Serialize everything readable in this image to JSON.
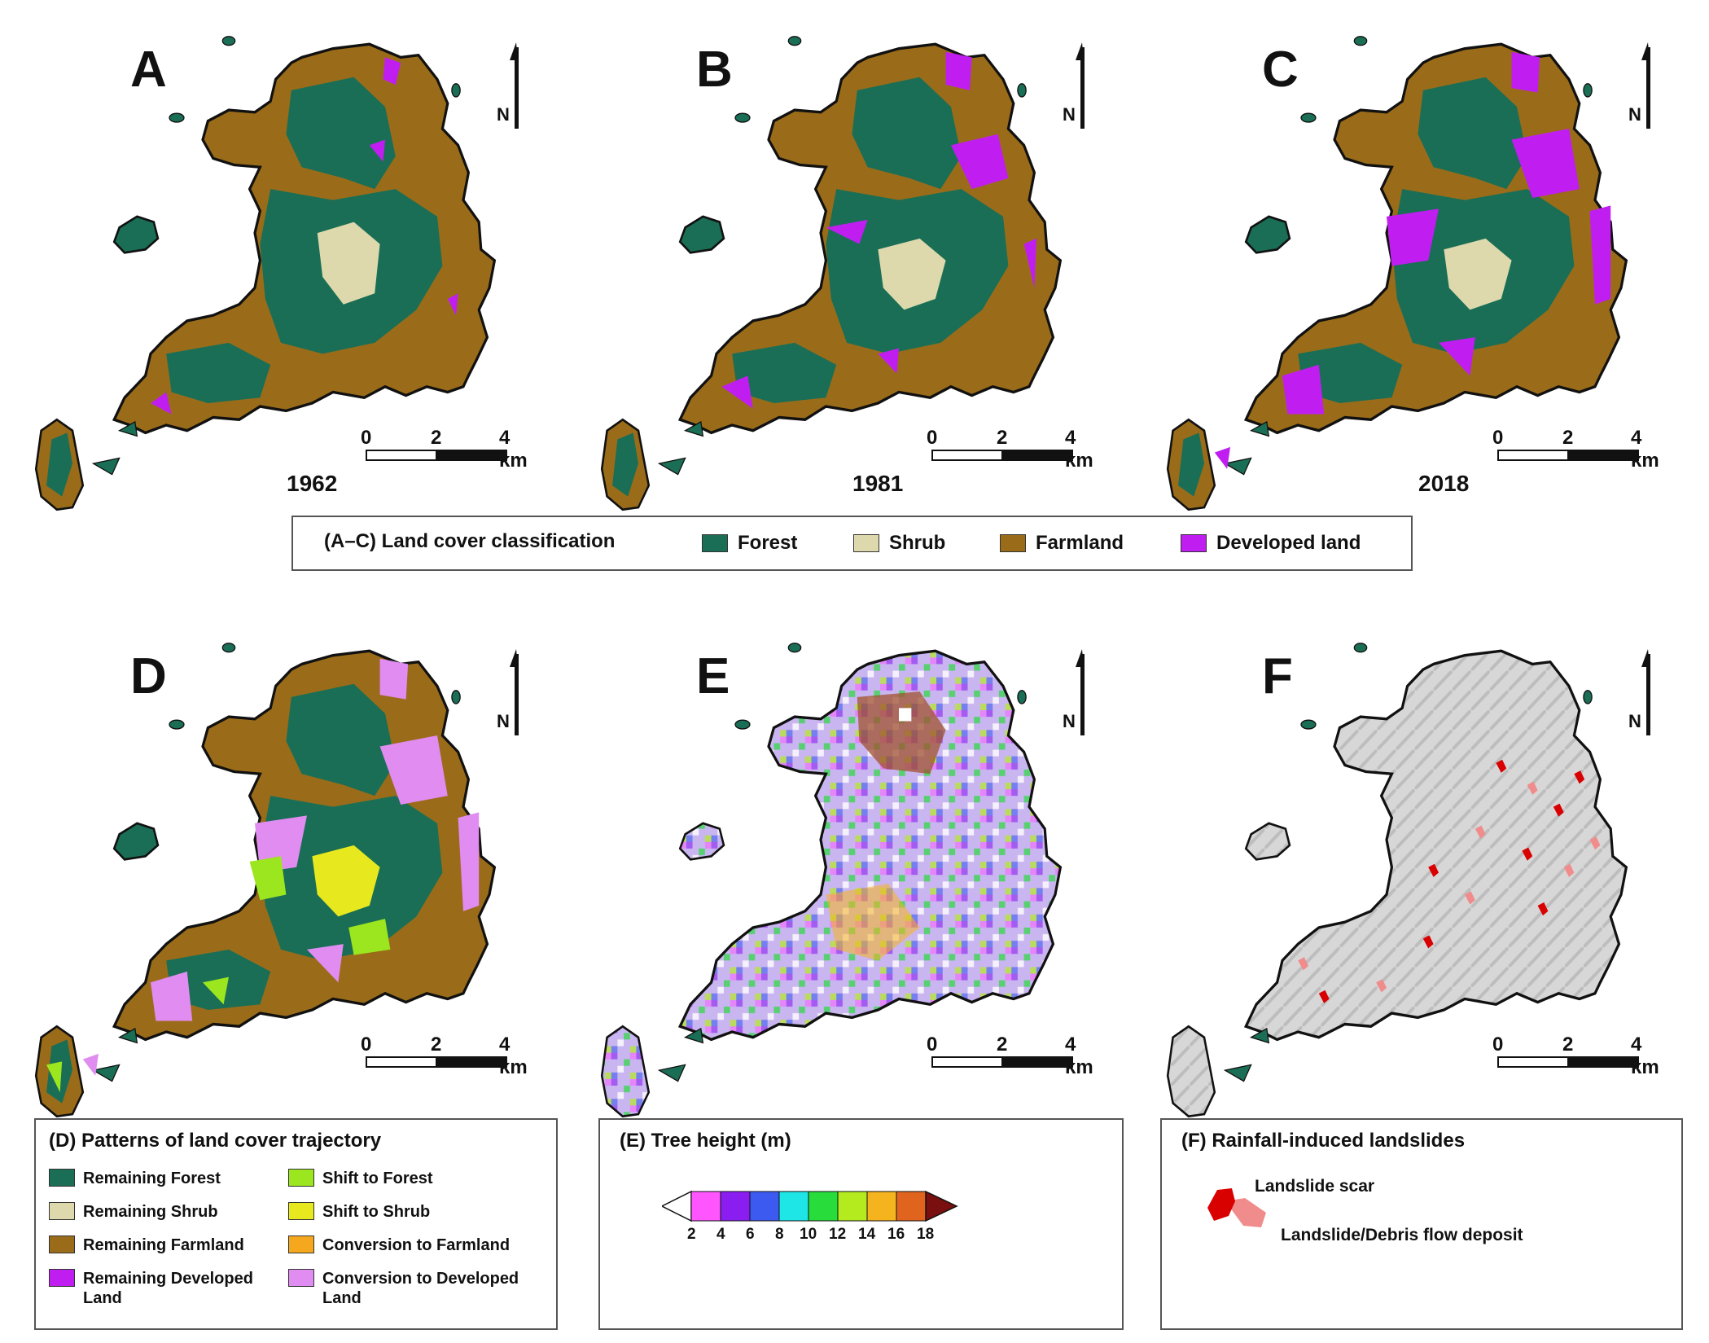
{
  "panels": [
    {
      "letter": "A",
      "year": "1962"
    },
    {
      "letter": "B",
      "year": "1981"
    },
    {
      "letter": "C",
      "year": "2018"
    },
    {
      "letter": "D",
      "year": ""
    },
    {
      "letter": "E",
      "year": ""
    },
    {
      "letter": "F",
      "year": ""
    }
  ],
  "north_label": "N",
  "scale": {
    "t0": "0",
    "t1": "2",
    "t2": "4 km"
  },
  "legend_abc": {
    "title": "(A–C) Land cover classification",
    "items": [
      {
        "label": "Forest",
        "color": "#1a6e55"
      },
      {
        "label": "Shrub",
        "color": "#ddd9ad"
      },
      {
        "label": "Farmland",
        "color": "#9a6c1a"
      },
      {
        "label": "Developed land",
        "color": "#c01ef0"
      }
    ]
  },
  "legend_d": {
    "title": "(D) Patterns of land cover trajectory",
    "items": [
      {
        "label": "Remaining Forest",
        "color": "#1a6e55"
      },
      {
        "label": "Shift to Forest",
        "color": "#9be61e"
      },
      {
        "label": "Remaining Shrub",
        "color": "#ddd9ad"
      },
      {
        "label": "Shift to Shrub",
        "color": "#e8e81e"
      },
      {
        "label": "Remaining Farmland",
        "color": "#9a6c1a"
      },
      {
        "label": "Conversion to Farmland",
        "color": "#f5a81e"
      },
      {
        "label": "Remaining Developed Land",
        "color": "#c01ef0"
      },
      {
        "label": "Conversion to Developed Land",
        "color": "#e08cf0"
      }
    ]
  },
  "legend_e": {
    "title": "(E) Tree height (m)",
    "ticks": [
      "2",
      "4",
      "6",
      "8",
      "10",
      "12",
      "14",
      "16",
      "18"
    ],
    "colors": [
      "#ff55ff",
      "#8a1ef0",
      "#3c5af0",
      "#1ee6e6",
      "#28dc3c",
      "#b4eb1e",
      "#f5b41e",
      "#e0641e",
      "#7a0f0f"
    ]
  },
  "legend_f": {
    "title": "(F) Rainfall-induced landslides",
    "items": [
      {
        "label": "Landslide scar",
        "color": "#d90000"
      },
      {
        "label": "Landslide/Debris flow deposit",
        "color": "#f08c8c"
      }
    ]
  }
}
